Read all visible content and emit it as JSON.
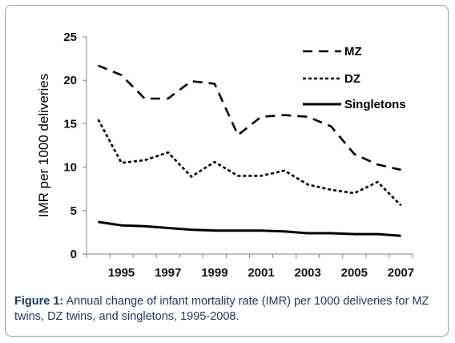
{
  "chart_data": {
    "type": "line",
    "ylabel": "IMR per 1000 deliveries",
    "xlabel": "",
    "ylim": [
      0,
      25
    ],
    "yticks": [
      "0",
      "5",
      "10",
      "15",
      "20",
      "25"
    ],
    "xlim": [
      1994,
      2008
    ],
    "xticks": [
      "1995",
      "1997",
      "1999",
      "2001",
      "2003",
      "2005",
      "2007"
    ],
    "grid": false,
    "legend_position": "top-right",
    "x": [
      1994.5,
      1995.5,
      1996.5,
      1997.5,
      1998.5,
      1999.5,
      2000.5,
      2001.5,
      2002.5,
      2003.5,
      2004.5,
      2005.5,
      2006.5,
      2007.5
    ],
    "series": [
      {
        "name": "MZ",
        "style": "long-dash",
        "values": [
          21.7,
          20.6,
          17.9,
          17.9,
          19.9,
          19.6,
          13.7,
          15.8,
          16.0,
          15.8,
          14.7,
          11.5,
          10.3,
          9.7
        ]
      },
      {
        "name": "DZ",
        "style": "short-dash",
        "values": [
          15.5,
          10.5,
          10.8,
          11.7,
          8.9,
          10.6,
          9.0,
          9.0,
          9.6,
          8.0,
          7.4,
          7.0,
          8.3,
          5.6
        ]
      },
      {
        "name": "Singletons",
        "style": "solid",
        "values": [
          3.7,
          3.3,
          3.2,
          3.0,
          2.8,
          2.7,
          2.7,
          2.7,
          2.6,
          2.4,
          2.4,
          2.3,
          2.3,
          2.1
        ]
      }
    ]
  },
  "caption": {
    "label": "Figure 1:",
    "text": " Annual change of infant mortality rate (IMR) per 1000 deliveries for MZ twins, DZ twins, and singletons, 1995-2008."
  },
  "colors": {
    "caption": "#1f3a66",
    "lines": "#000000",
    "frame": "#9a9a9a"
  }
}
